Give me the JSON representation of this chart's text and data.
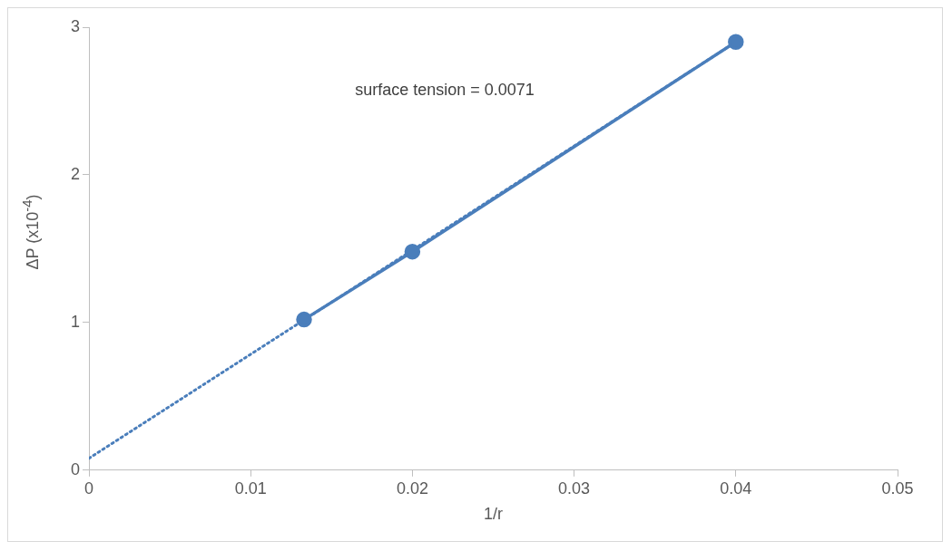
{
  "chart_data": {
    "type": "line",
    "xlabel": "1/r",
    "ylabel": "ΔP (x10$^{-4}$)",
    "xlim": [
      0,
      0.05
    ],
    "xticks": [
      0,
      0.01,
      0.02,
      0.03,
      0.04,
      0.05
    ],
    "ylim": [
      0,
      3
    ],
    "yticks": [
      0,
      1,
      2,
      3
    ],
    "marker": "circle",
    "annotations": [
      "surface tension = 0.0071"
    ],
    "legend": false,
    "series": [
      {
        "color": "#4a7ebb",
        "x": [
          0.0133,
          0.02,
          0.04
        ],
        "values": [
          1.02,
          1.48,
          2.9
        ],
        "line_style": "solid"
      },
      {
        "type": "line",
        "color": "#4a7ebb",
        "x": [
          0,
          0.04
        ],
        "values": [
          0.08,
          2.9
        ],
        "marker": "none",
        "line_style": "dotted"
      }
    ]
  }
}
